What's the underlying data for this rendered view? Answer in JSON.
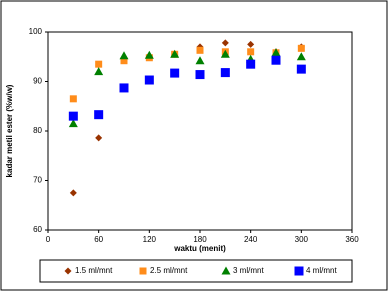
{
  "chart_data": {
    "type": "scatter",
    "x_label": "waktu (menit)",
    "y_label": "kadar metil ester (%w/w)",
    "x": [
      30,
      60,
      90,
      120,
      150,
      180,
      210,
      240,
      270,
      300
    ],
    "series": [
      {
        "name": "1.5 ml/mnt",
        "color": "#993300",
        "marker": "diamond",
        "values": [
          67.5,
          78.6,
          94.5,
          95.2,
          95.5,
          97,
          97.8,
          97.5,
          96,
          97
        ]
      },
      {
        "name": "2.5 ml/mnt",
        "color": "#ff8c1a",
        "marker": "square",
        "values": [
          86.5,
          93.5,
          94.2,
          94.8,
          95.5,
          96.3,
          96,
          96,
          95.8,
          96.7
        ]
      },
      {
        "name": "3 ml/mnt",
        "color": "#008000",
        "marker": "triangle",
        "values": [
          81.5,
          92,
          95.2,
          95.3,
          95.5,
          94.2,
          95.5,
          94.5,
          95.8,
          95
        ]
      },
      {
        "name": "4 ml/mnt",
        "color": "#0000ff",
        "marker": "bigsquare",
        "values": [
          83,
          83.3,
          88.7,
          90.3,
          91.7,
          91.4,
          91.8,
          93.5,
          94.3,
          92.5
        ]
      }
    ],
    "xlim": [
      0,
      360
    ],
    "xticks": [
      0,
      60,
      120,
      180,
      240,
      300,
      360
    ],
    "ylim": [
      60,
      100
    ],
    "yticks": [
      60,
      70,
      80,
      90,
      100
    ],
    "grid": false,
    "legend": "bottom"
  }
}
